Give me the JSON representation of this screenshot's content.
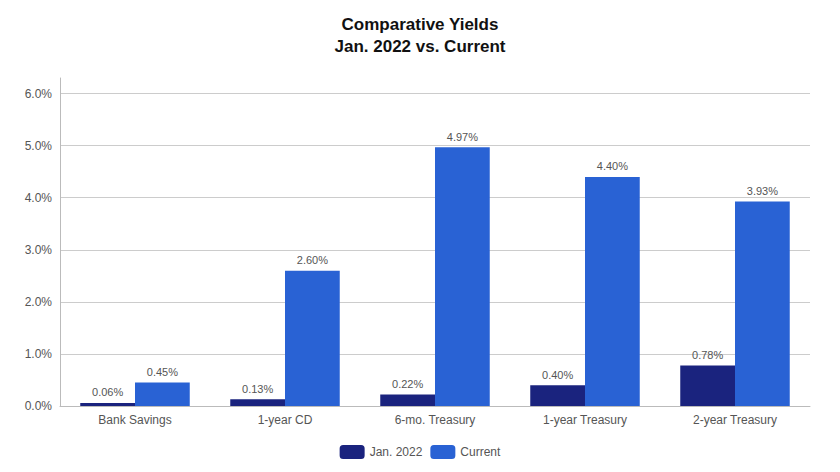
{
  "chart_data": {
    "type": "bar",
    "title": "Comparative Yields\nJan. 2022 vs. Current",
    "categories": [
      "Bank Savings",
      "1-year CD",
      "6-mo. Treasury",
      "1-year Treasury",
      "2-year Treasury"
    ],
    "series": [
      {
        "name": "Jan. 2022",
        "color": "#1a237e",
        "values": [
          0.0006,
          0.0013,
          0.0022,
          0.004,
          0.0078
        ],
        "value_labels": [
          "0.06%",
          "0.13%",
          "0.22%",
          "0.40%",
          "0.78%"
        ]
      },
      {
        "name": "Current",
        "color": "#2962d4",
        "values": [
          0.0045,
          0.026,
          0.0497,
          0.044,
          0.0393
        ],
        "value_labels": [
          "0.45%",
          "2.60%",
          "4.97%",
          "4.40%",
          "3.93%"
        ]
      }
    ],
    "ylim": [
      0,
      0.063
    ],
    "yticks": [
      {
        "value": 0.0,
        "label": "0.0%"
      },
      {
        "value": 0.01,
        "label": "1.0%"
      },
      {
        "value": 0.02,
        "label": "2.0%"
      },
      {
        "value": 0.03,
        "label": "3.0%"
      },
      {
        "value": 0.04,
        "label": "4.0%"
      },
      {
        "value": 0.05,
        "label": "5.0%"
      },
      {
        "value": 0.06,
        "label": "6.0%"
      }
    ],
    "grid": true,
    "legend": "bottom",
    "data_labels": true
  }
}
